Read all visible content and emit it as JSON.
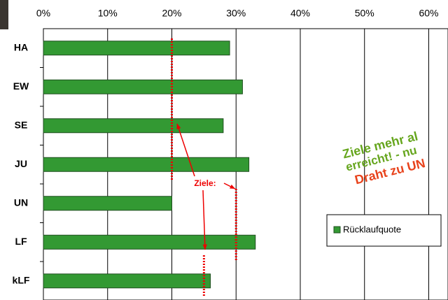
{
  "chart_data": {
    "type": "bar",
    "orientation": "horizontal",
    "categories": [
      "HA",
      "EW",
      "SE",
      "JU",
      "UN",
      "LF",
      "kLF"
    ],
    "series": [
      {
        "name": "Rücklaufquote",
        "color": "#339933",
        "values": [
          29,
          31,
          28,
          32,
          20,
          33,
          26
        ]
      }
    ],
    "xlim": [
      0,
      63
    ],
    "xticks": [
      {
        "value": 0,
        "label": "0%"
      },
      {
        "value": 10,
        "label": "10%"
      },
      {
        "value": 20,
        "label": "20%"
      },
      {
        "value": 30,
        "label": "30%"
      },
      {
        "value": 40,
        "label": "40%"
      },
      {
        "value": 50,
        "label": "50%"
      },
      {
        "value": 60,
        "label": "60%"
      }
    ],
    "grid": true,
    "target_label": "Ziele:",
    "targets": [
      20,
      30,
      25
    ],
    "annotations": [
      {
        "text": "Ziele mehr al",
        "color": "#66a61e"
      },
      {
        "text": "erreicht! - nu",
        "color": "#66a61e"
      },
      {
        "text": "Draht zu UN",
        "color": "#e8431c"
      }
    ],
    "legend": "right"
  }
}
